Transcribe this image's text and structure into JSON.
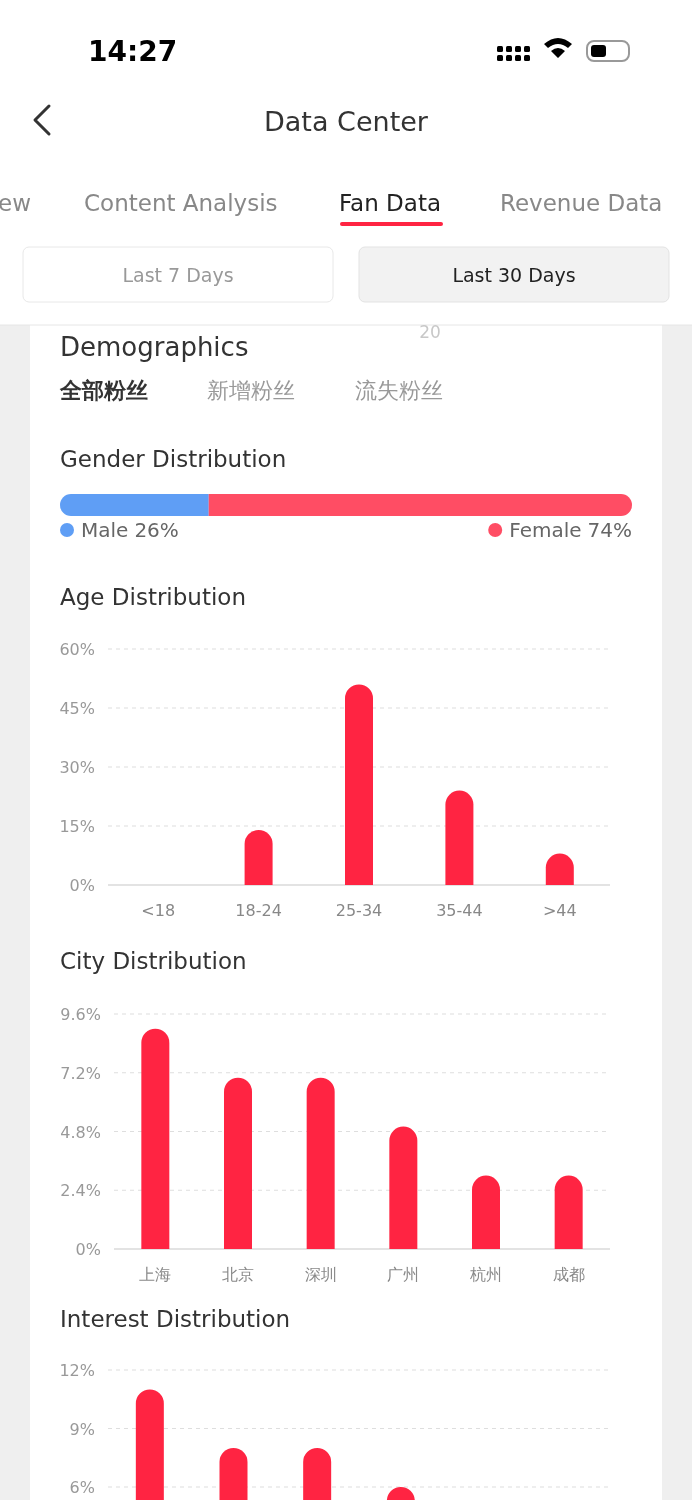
{
  "chart_data": [
    {
      "type": "other",
      "title": "Data Center",
      "subtitle": "Demographics",
      "annotations": [
        "14:27",
        "ew",
        "Content Analysis",
        "Fan Data",
        "Revenue Data",
        "Last 7 Days",
        "Last 30 Days",
        "20",
        "全部粉丝",
        "新增粉丝",
        "流失粉丝"
      ]
    },
    {
      "type": "bar",
      "title": "Gender Distribution",
      "orientation": "horizontal",
      "stacked": true,
      "categories": [
        null
      ],
      "legend": "bottom",
      "series": [
        {
          "name": "Male",
          "color": "#5f9ef5",
          "values": [
            26
          ],
          "value_labels": [
            "26%"
          ]
        },
        {
          "name": "Female",
          "color": "#ff4d64",
          "values": [
            74
          ],
          "value_labels": [
            "74%"
          ]
        }
      ]
    },
    {
      "type": "bar",
      "title": "Age Distribution",
      "categories": [
        "<18",
        "18-24",
        "25-34",
        "35-44",
        ">44"
      ],
      "values": [
        0,
        14,
        51,
        24,
        8
      ],
      "color": "#ff2442",
      "ylim": [
        0,
        60
      ],
      "yticks": [
        {
          "value": 0,
          "label": "0%"
        },
        {
          "value": 15,
          "label": "15%"
        },
        {
          "value": 30,
          "label": "30%"
        },
        {
          "value": 45,
          "label": "45%"
        },
        {
          "value": 60,
          "label": "60%"
        }
      ],
      "grid": "y"
    },
    {
      "type": "bar",
      "title": "City Distribution",
      "categories": [
        "上海",
        "北京",
        "深圳",
        "广州",
        "杭州",
        "成都"
      ],
      "values": [
        9.0,
        7.0,
        7.0,
        5.0,
        3.0,
        3.0
      ],
      "color": "#ff2442",
      "ylim": [
        0,
        9.6
      ],
      "yticks": [
        {
          "value": 0,
          "label": "0%"
        },
        {
          "value": 2.4,
          "label": "2.4%"
        },
        {
          "value": 4.8,
          "label": "4.8%"
        },
        {
          "value": 7.2,
          "label": "7.2%"
        },
        {
          "value": 9.6,
          "label": "9.6%"
        }
      ],
      "grid": "y"
    },
    {
      "type": "bar",
      "title": "Interest Distribution",
      "categories": [
        null,
        null,
        null,
        null,
        null,
        null
      ],
      "values": [
        11,
        8,
        8,
        6,
        null,
        null
      ],
      "color": "#ff2442",
      "ylim": [
        0,
        12
      ],
      "yticks": [
        {
          "value": 6,
          "label": "6%"
        },
        {
          "value": 9,
          "label": "9%"
        },
        {
          "value": 12,
          "label": "12%"
        }
      ],
      "grid": "y"
    }
  ]
}
